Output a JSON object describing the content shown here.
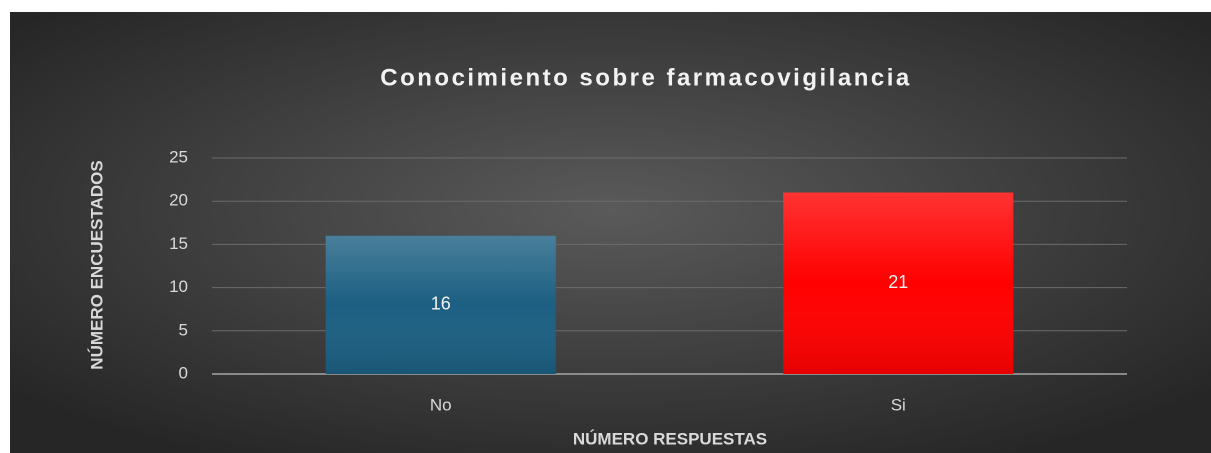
{
  "chart_data": {
    "type": "bar",
    "title": "Conocimiento sobre farmacovigilancia",
    "x_label": "NÚMERO RESPUESTAS",
    "y_label": "NÚMERO ENCUESTADOS",
    "categories": [
      "No",
      "Si"
    ],
    "values": [
      16,
      21
    ],
    "colors": [
      "#1c5f82",
      "#ff0000"
    ],
    "ylim": [
      0,
      25
    ],
    "yticks": [
      0,
      5,
      10,
      15,
      20,
      25
    ],
    "grid": true
  }
}
